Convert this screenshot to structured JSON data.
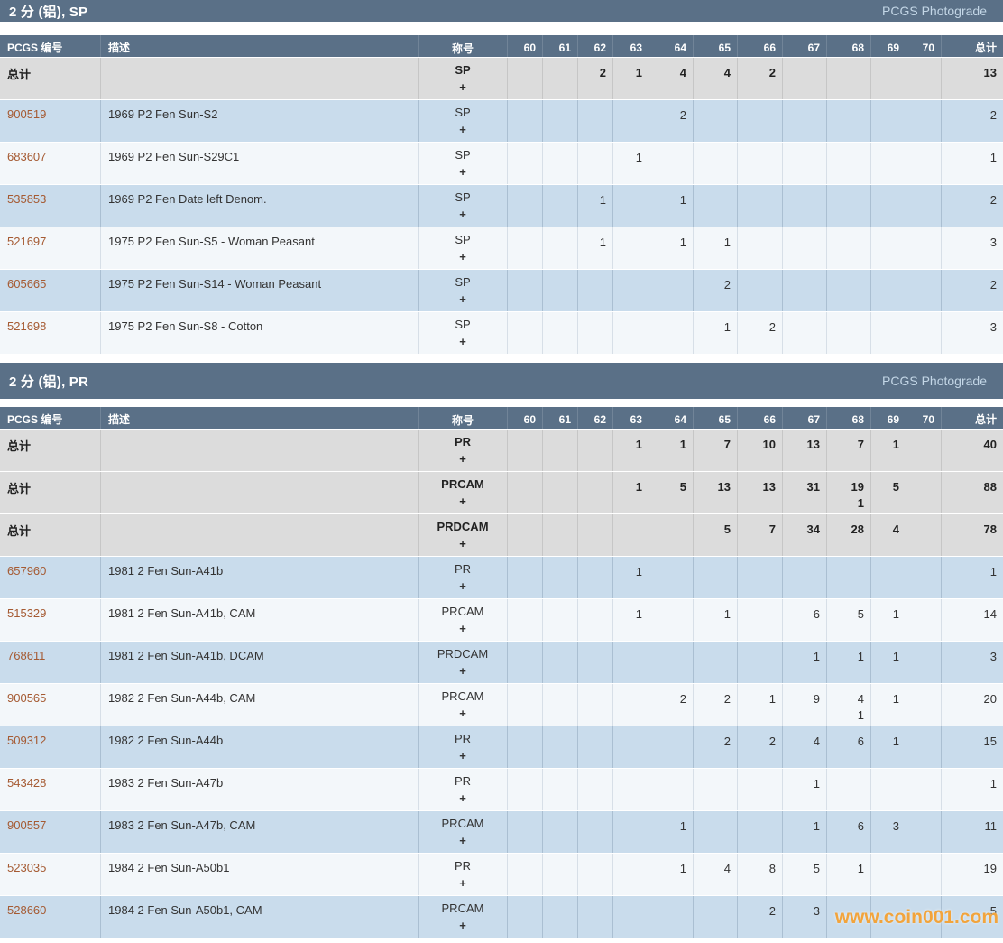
{
  "page": {
    "watermark": "www.coin001.com"
  },
  "columns": {
    "pcgs": "PCGS 编号",
    "description": "描述",
    "designation": "称号",
    "grades": [
      "60",
      "61",
      "62",
      "63",
      "64",
      "65",
      "66",
      "67",
      "68",
      "69",
      "70"
    ],
    "total": "总计"
  },
  "colors": {
    "header_bg": "#5a7087",
    "row_blue": "#c9dcec",
    "row_light": "#f3f7fa",
    "row_total": "#dcdcdc",
    "pcgs_link": "#a55a32",
    "watermark": "#f2a43c"
  },
  "sections": [
    {
      "title": "2 分 (铝), SP",
      "service": "PCGS Photograde",
      "rows": [
        {
          "kind": "total",
          "number": "总计",
          "description": "",
          "designation": "SP",
          "plus": "+",
          "grades": [
            "",
            "",
            "2",
            "1",
            "4",
            "4",
            "2",
            "",
            "",
            "",
            ""
          ],
          "total": "13"
        },
        {
          "kind": "data",
          "number": "900519",
          "description": "1969 P2 Fen Sun-S2",
          "designation": "SP",
          "plus": "+",
          "grades": [
            "",
            "",
            "",
            "",
            "2",
            "",
            "",
            "",
            "",
            "",
            ""
          ],
          "total": "2"
        },
        {
          "kind": "data",
          "number": "683607",
          "description": "1969 P2 Fen Sun-S29C1",
          "designation": "SP",
          "plus": "+",
          "grades": [
            "",
            "",
            "",
            "1",
            "",
            "",
            "",
            "",
            "",
            "",
            ""
          ],
          "total": "1"
        },
        {
          "kind": "data",
          "number": "535853",
          "description": "1969 P2 Fen Date left Denom.",
          "designation": "SP",
          "plus": "+",
          "grades": [
            "",
            "",
            "1",
            "",
            "1",
            "",
            "",
            "",
            "",
            "",
            ""
          ],
          "total": "2"
        },
        {
          "kind": "data",
          "number": "521697",
          "description": "1975 P2 Fen Sun-S5 - Woman Peasant",
          "designation": "SP",
          "plus": "+",
          "grades": [
            "",
            "",
            "1",
            "",
            "1",
            "1",
            "",
            "",
            "",
            "",
            ""
          ],
          "total": "3"
        },
        {
          "kind": "data",
          "number": "605665",
          "description": "1975 P2 Fen Sun-S14 - Woman Peasant",
          "designation": "SP",
          "plus": "+",
          "grades": [
            "",
            "",
            "",
            "",
            "",
            "2",
            "",
            "",
            "",
            "",
            ""
          ],
          "total": "2"
        },
        {
          "kind": "data",
          "number": "521698",
          "description": "1975 P2 Fen Sun-S8 - Cotton",
          "designation": "SP",
          "plus": "+",
          "grades": [
            "",
            "",
            "",
            "",
            "",
            "1",
            "2",
            "",
            "",
            "",
            ""
          ],
          "total": "3"
        }
      ]
    },
    {
      "title": "2 分 (铝), PR",
      "service": "PCGS Photograde",
      "rows": [
        {
          "kind": "total",
          "number": "总计",
          "description": "",
          "designation": "PR",
          "plus": "+",
          "grades": [
            "",
            "",
            "",
            "1",
            "1",
            "7",
            "10",
            "13",
            "7",
            "1",
            ""
          ],
          "total": "40"
        },
        {
          "kind": "total",
          "number": "总计",
          "description": "",
          "designation": "PRCAM",
          "plus": "+",
          "grades": [
            "",
            "",
            "",
            "1",
            "5",
            "13",
            "13",
            "31",
            "19\n1",
            "5",
            ""
          ],
          "total": "88"
        },
        {
          "kind": "total",
          "number": "总计",
          "description": "",
          "designation": "PRDCAM",
          "plus": "+",
          "grades": [
            "",
            "",
            "",
            "",
            "",
            "5",
            "7",
            "34",
            "28",
            "4",
            ""
          ],
          "total": "78"
        },
        {
          "kind": "data",
          "number": "657960",
          "description": "1981 2 Fen Sun-A41b",
          "designation": "PR",
          "plus": "+",
          "grades": [
            "",
            "",
            "",
            "1",
            "",
            "",
            "",
            "",
            "",
            "",
            ""
          ],
          "total": "1"
        },
        {
          "kind": "data",
          "number": "515329",
          "description": "1981 2 Fen Sun-A41b, CAM",
          "designation": "PRCAM",
          "plus": "+",
          "grades": [
            "",
            "",
            "",
            "1",
            "",
            "1",
            "",
            "6",
            "5",
            "1",
            ""
          ],
          "total": "14"
        },
        {
          "kind": "data",
          "number": "768611",
          "description": "1981 2 Fen Sun-A41b, DCAM",
          "designation": "PRDCAM",
          "plus": "+",
          "grades": [
            "",
            "",
            "",
            "",
            "",
            "",
            "",
            "1",
            "1",
            "1",
            ""
          ],
          "total": "3"
        },
        {
          "kind": "data",
          "number": "900565",
          "description": "1982 2 Fen Sun-A44b, CAM",
          "designation": "PRCAM",
          "plus": "+",
          "grades": [
            "",
            "",
            "",
            "",
            "2",
            "2",
            "1",
            "9",
            "4\n1",
            "1",
            ""
          ],
          "total": "20"
        },
        {
          "kind": "data",
          "number": "509312",
          "description": "1982 2 Fen Sun-A44b",
          "designation": "PR",
          "plus": "+",
          "grades": [
            "",
            "",
            "",
            "",
            "",
            "2",
            "2",
            "4",
            "6",
            "1",
            ""
          ],
          "total": "15"
        },
        {
          "kind": "data",
          "number": "543428",
          "description": "1983 2 Fen Sun-A47b",
          "designation": "PR",
          "plus": "+",
          "grades": [
            "",
            "",
            "",
            "",
            "",
            "",
            "",
            "1",
            "",
            "",
            ""
          ],
          "total": "1"
        },
        {
          "kind": "data",
          "number": "900557",
          "description": "1983 2 Fen Sun-A47b, CAM",
          "designation": "PRCAM",
          "plus": "+",
          "grades": [
            "",
            "",
            "",
            "",
            "1",
            "",
            "",
            "1",
            "6",
            "3",
            ""
          ],
          "total": "11"
        },
        {
          "kind": "data",
          "number": "523035",
          "description": "1984 2 Fen Sun-A50b1",
          "designation": "PR",
          "plus": "+",
          "grades": [
            "",
            "",
            "",
            "",
            "1",
            "4",
            "8",
            "5",
            "1",
            "",
            ""
          ],
          "total": "19"
        },
        {
          "kind": "data",
          "number": "528660",
          "description": "1984 2 Fen Sun-A50b1, CAM",
          "designation": "PRCAM",
          "plus": "+",
          "grades": [
            "",
            "",
            "",
            "",
            "",
            "",
            "2",
            "3",
            "",
            "",
            ""
          ],
          "total": "5"
        }
      ]
    }
  ]
}
